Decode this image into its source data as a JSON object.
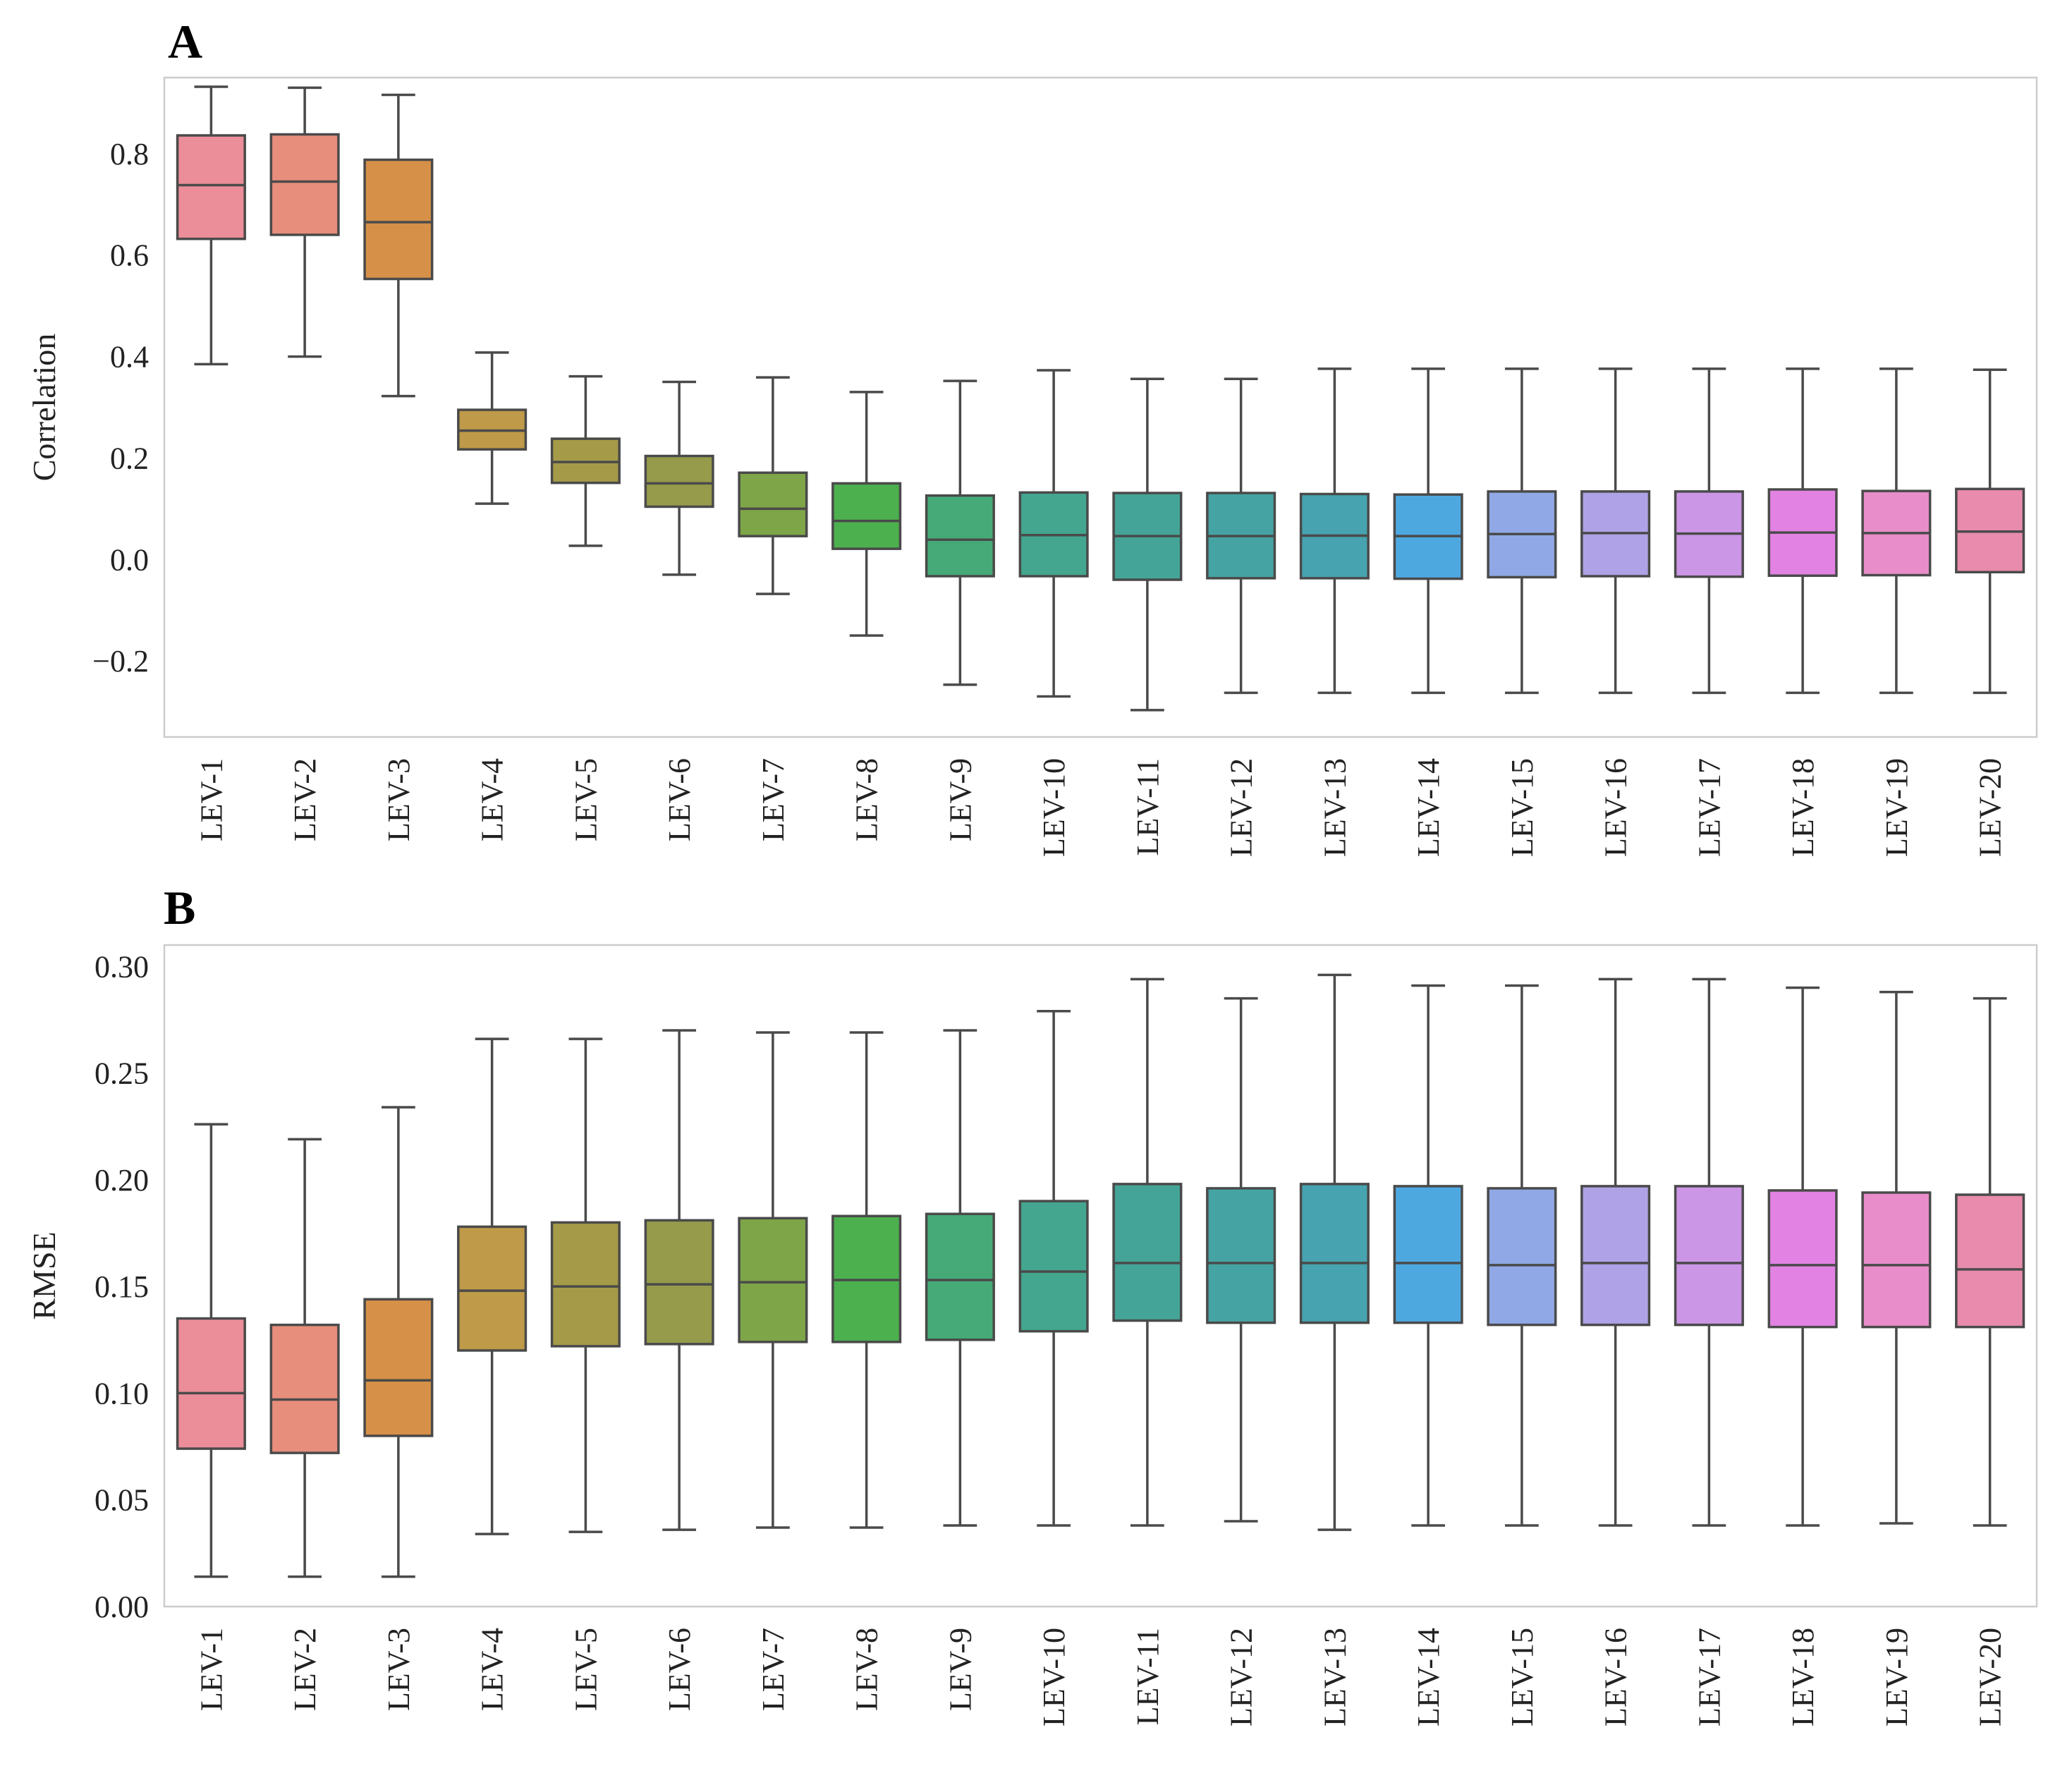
{
  "chart_data": [
    {
      "panel": "A",
      "type": "box",
      "title": "",
      "xlabel": "",
      "ylabel": "Correlation",
      "ylim": [
        -0.35,
        0.95
      ],
      "yticks": [
        -0.2,
        0.0,
        0.2,
        0.4,
        0.6,
        0.8
      ],
      "ytick_labels": [
        "−0.2",
        "0.0",
        "0.2",
        "0.4",
        "0.6",
        "0.8"
      ],
      "grid": false,
      "categories": [
        "LEV-1",
        "LEV-2",
        "LEV-3",
        "LEV-4",
        "LEV-5",
        "LEV-6",
        "LEV-7",
        "LEV-8",
        "LEV-9",
        "LEV-10",
        "LEV-11",
        "LEV-12",
        "LEV-13",
        "LEV-14",
        "LEV-15",
        "LEV-16",
        "LEV-17",
        "LEV-18",
        "LEV-19",
        "LEV-20"
      ],
      "boxes": [
        {
          "whislo": 0.385,
          "q1": 0.632,
          "med": 0.738,
          "q3": 0.836,
          "whishi": 0.932
        },
        {
          "whislo": 0.4,
          "q1": 0.64,
          "med": 0.745,
          "q3": 0.838,
          "whishi": 0.93
        },
        {
          "whislo": 0.322,
          "q1": 0.553,
          "med": 0.665,
          "q3": 0.788,
          "whishi": 0.916
        },
        {
          "whislo": 0.11,
          "q1": 0.217,
          "med": 0.254,
          "q3": 0.295,
          "whishi": 0.408
        },
        {
          "whislo": 0.027,
          "q1": 0.151,
          "med": 0.192,
          "q3": 0.238,
          "whishi": 0.361
        },
        {
          "whislo": -0.03,
          "q1": 0.104,
          "med": 0.15,
          "q3": 0.204,
          "whishi": 0.35
        },
        {
          "whislo": -0.068,
          "q1": 0.046,
          "med": 0.1,
          "q3": 0.171,
          "whishi": 0.359
        },
        {
          "whislo": -0.15,
          "q1": 0.021,
          "med": 0.076,
          "q3": 0.15,
          "whishi": 0.33
        },
        {
          "whislo": -0.247,
          "q1": -0.033,
          "med": 0.039,
          "q3": 0.126,
          "whishi": 0.352
        },
        {
          "whislo": -0.27,
          "q1": -0.033,
          "med": 0.048,
          "q3": 0.132,
          "whishi": 0.373
        },
        {
          "whislo": -0.297,
          "q1": -0.04,
          "med": 0.046,
          "q3": 0.131,
          "whishi": 0.356
        },
        {
          "whislo": -0.263,
          "q1": -0.037,
          "med": 0.046,
          "q3": 0.131,
          "whishi": 0.356
        },
        {
          "whislo": -0.263,
          "q1": -0.037,
          "med": 0.047,
          "q3": 0.129,
          "whishi": 0.376
        },
        {
          "whislo": -0.263,
          "q1": -0.038,
          "med": 0.046,
          "q3": 0.128,
          "whishi": 0.376
        },
        {
          "whislo": -0.263,
          "q1": -0.035,
          "med": 0.05,
          "q3": 0.134,
          "whishi": 0.376
        },
        {
          "whislo": -0.263,
          "q1": -0.033,
          "med": 0.052,
          "q3": 0.134,
          "whishi": 0.376
        },
        {
          "whislo": -0.263,
          "q1": -0.034,
          "med": 0.051,
          "q3": 0.134,
          "whishi": 0.376
        },
        {
          "whislo": -0.263,
          "q1": -0.032,
          "med": 0.053,
          "q3": 0.138,
          "whishi": 0.376
        },
        {
          "whislo": -0.263,
          "q1": -0.031,
          "med": 0.052,
          "q3": 0.135,
          "whishi": 0.376
        },
        {
          "whislo": -0.263,
          "q1": -0.025,
          "med": 0.055,
          "q3": 0.139,
          "whishi": 0.374
        }
      ]
    },
    {
      "panel": "B",
      "type": "box",
      "title": "",
      "xlabel": "",
      "ylabel": "RMSE",
      "ylim": [
        0.0,
        0.31
      ],
      "yticks": [
        0.0,
        0.05,
        0.1,
        0.15,
        0.2,
        0.25,
        0.3
      ],
      "ytick_labels": [
        "0.00",
        "0.05",
        "0.10",
        "0.15",
        "0.20",
        "0.25",
        "0.30"
      ],
      "grid": false,
      "categories": [
        "LEV-1",
        "LEV-2",
        "LEV-3",
        "LEV-4",
        "LEV-5",
        "LEV-6",
        "LEV-7",
        "LEV-8",
        "LEV-9",
        "LEV-10",
        "LEV-11",
        "LEV-12",
        "LEV-13",
        "LEV-14",
        "LEV-15",
        "LEV-16",
        "LEV-17",
        "LEV-18",
        "LEV-19",
        "LEV-20"
      ],
      "boxes": [
        {
          "whislo": 0.014,
          "q1": 0.074,
          "med": 0.1,
          "q3": 0.135,
          "whishi": 0.226
        },
        {
          "whislo": 0.014,
          "q1": 0.072,
          "med": 0.097,
          "q3": 0.132,
          "whishi": 0.219
        },
        {
          "whislo": 0.014,
          "q1": 0.08,
          "med": 0.106,
          "q3": 0.144,
          "whishi": 0.234
        },
        {
          "whislo": 0.034,
          "q1": 0.12,
          "med": 0.148,
          "q3": 0.178,
          "whishi": 0.266
        },
        {
          "whislo": 0.035,
          "q1": 0.122,
          "med": 0.15,
          "q3": 0.18,
          "whishi": 0.266
        },
        {
          "whislo": 0.036,
          "q1": 0.123,
          "med": 0.151,
          "q3": 0.181,
          "whishi": 0.27
        },
        {
          "whislo": 0.037,
          "q1": 0.124,
          "med": 0.152,
          "q3": 0.182,
          "whishi": 0.269
        },
        {
          "whislo": 0.037,
          "q1": 0.124,
          "med": 0.153,
          "q3": 0.183,
          "whishi": 0.269
        },
        {
          "whislo": 0.038,
          "q1": 0.125,
          "med": 0.153,
          "q3": 0.184,
          "whishi": 0.27
        },
        {
          "whislo": 0.038,
          "q1": 0.129,
          "med": 0.157,
          "q3": 0.19,
          "whishi": 0.279
        },
        {
          "whislo": 0.038,
          "q1": 0.134,
          "med": 0.161,
          "q3": 0.198,
          "whishi": 0.294
        },
        {
          "whislo": 0.04,
          "q1": 0.133,
          "med": 0.161,
          "q3": 0.196,
          "whishi": 0.285
        },
        {
          "whislo": 0.036,
          "q1": 0.133,
          "med": 0.161,
          "q3": 0.198,
          "whishi": 0.296
        },
        {
          "whislo": 0.038,
          "q1": 0.133,
          "med": 0.161,
          "q3": 0.197,
          "whishi": 0.291
        },
        {
          "whislo": 0.038,
          "q1": 0.132,
          "med": 0.16,
          "q3": 0.196,
          "whishi": 0.291
        },
        {
          "whislo": 0.038,
          "q1": 0.132,
          "med": 0.161,
          "q3": 0.197,
          "whishi": 0.294
        },
        {
          "whislo": 0.038,
          "q1": 0.132,
          "med": 0.161,
          "q3": 0.197,
          "whishi": 0.294
        },
        {
          "whislo": 0.038,
          "q1": 0.131,
          "med": 0.16,
          "q3": 0.195,
          "whishi": 0.29
        },
        {
          "whislo": 0.039,
          "q1": 0.131,
          "med": 0.16,
          "q3": 0.194,
          "whishi": 0.288
        },
        {
          "whislo": 0.038,
          "q1": 0.131,
          "med": 0.158,
          "q3": 0.193,
          "whishi": 0.285
        }
      ]
    }
  ],
  "palette": [
    "#eb8e99",
    "#e88e7c",
    "#d69047",
    "#bf9a48",
    "#a59a48",
    "#959b4a",
    "#7ea548",
    "#4cb04e",
    "#45aa78",
    "#44a68e",
    "#44a497",
    "#45a4a3",
    "#46a3af",
    "#4ea8e0",
    "#90a8e5",
    "#afa2e6",
    "#cc96e6",
    "#e283e3",
    "#e88dc9",
    "#e88bac"
  ],
  "panels": {
    "a_label": "A",
    "b_label": "B"
  }
}
